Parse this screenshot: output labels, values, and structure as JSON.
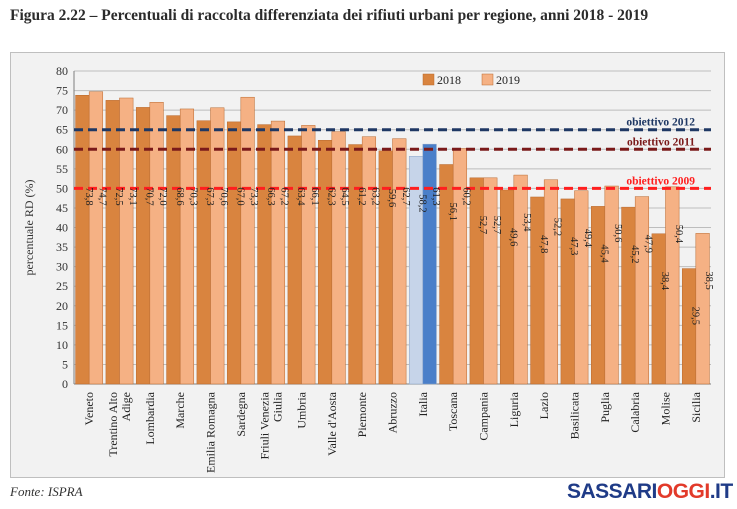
{
  "figure": {
    "title": "Figura 2.22 – Percentuali di raccolta differenziata dei rifiuti urbani per regione, anni 2018 - 2019",
    "source": "Fonte: ISPRA"
  },
  "brand": {
    "part1": "SASSARI",
    "part2": "OGGI",
    "part3": ".IT"
  },
  "chart_data": {
    "type": "bar",
    "ylabel": "percentuale RD (%)",
    "ylim": [
      0,
      80
    ],
    "yticks": [
      0,
      5,
      10,
      15,
      20,
      25,
      30,
      35,
      40,
      45,
      50,
      55,
      60,
      65,
      70,
      75,
      80
    ],
    "grid": true,
    "legend_position": "top-center",
    "categories": [
      [
        "Veneto"
      ],
      [
        "Trentino Alto",
        "Adige"
      ],
      [
        "Lombardia"
      ],
      [
        "Marche"
      ],
      [
        "Emilia Romagna"
      ],
      [
        "Sardegna"
      ],
      [
        "Friuli Venezia",
        "Giulia"
      ],
      [
        "Umbria"
      ],
      [
        "Valle d'Aosta"
      ],
      [
        "Piemonte"
      ],
      [
        "Abruzzo"
      ],
      [
        "Italia"
      ],
      [
        "Toscana"
      ],
      [
        "Campania"
      ],
      [
        "Liguria"
      ],
      [
        "Lazio"
      ],
      [
        "Basilicata"
      ],
      [
        "Puglia"
      ],
      [
        "Calabria"
      ],
      [
        "Molise"
      ],
      [
        "Sicilia"
      ]
    ],
    "series": [
      {
        "name": "2018",
        "color": "#d9843f",
        "highlight_color": "#c6d4e9",
        "values": [
          73.8,
          72.5,
          70.7,
          68.6,
          67.3,
          67.0,
          66.3,
          63.4,
          62.3,
          61.2,
          59.6,
          58.2,
          56.1,
          52.7,
          49.6,
          47.8,
          47.3,
          45.4,
          45.2,
          38.4,
          29.5
        ],
        "labels": [
          "73,8",
          "72,5",
          "70,7",
          "68,6",
          "67,3",
          "67,0",
          "66,3",
          "63,4",
          "62,3",
          "61,2",
          "59,6",
          "58,2",
          "56,1",
          "52,7",
          "49,6",
          "47,8",
          "47,3",
          "45,4",
          "45,2",
          "38,4",
          "29,5"
        ]
      },
      {
        "name": "2019",
        "color": "#f5b184",
        "highlight_color": "#4a7fc9",
        "values": [
          74.7,
          73.1,
          72.0,
          70.3,
          70.6,
          73.3,
          67.2,
          66.1,
          64.5,
          63.2,
          62.7,
          61.3,
          60.2,
          52.7,
          53.4,
          52.2,
          49.4,
          50.6,
          47.9,
          50.4,
          38.5
        ],
        "labels": [
          "74,7",
          "73,1",
          "72,0",
          "70,3",
          "70,6",
          "73,3",
          "67,2",
          "66,1",
          "64,5",
          "63,2",
          "62,7",
          "61,3",
          "60,2",
          "52,7",
          "53,4",
          "52,2",
          "49,4",
          "50,6",
          "47,9",
          "50,4",
          "38,5"
        ]
      }
    ],
    "highlight_category_index": 11,
    "reference_lines": [
      {
        "label": "obiettivo 2012",
        "value": 65,
        "color": "#1f3864"
      },
      {
        "label": "obiettivo 2011",
        "value": 60,
        "color": "#7b1a1a"
      },
      {
        "label": "obiettivo 2009",
        "value": 50,
        "color": "#ff1f1f"
      }
    ]
  }
}
